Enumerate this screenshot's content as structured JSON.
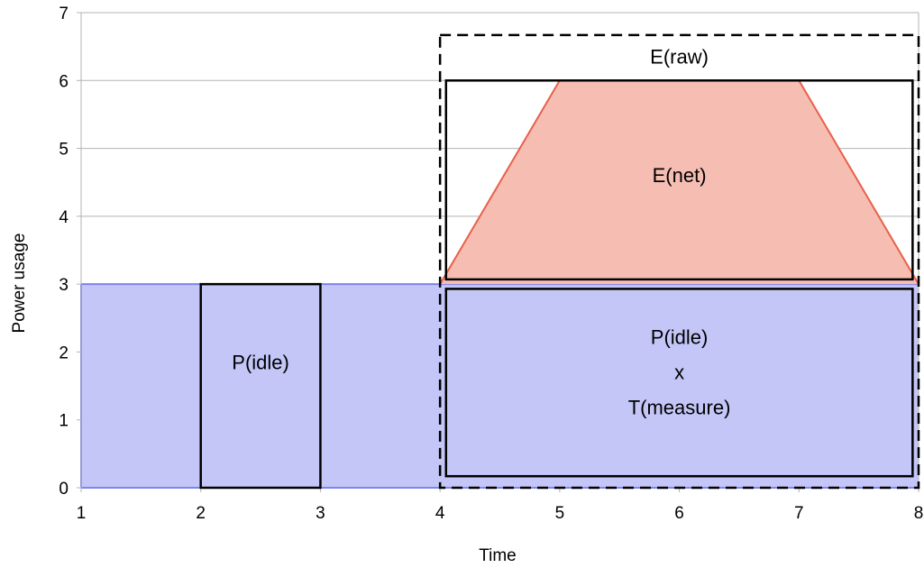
{
  "chart_data": {
    "type": "area",
    "xlabel": "Time",
    "ylabel": "Power usage",
    "xlim": [
      1,
      8
    ],
    "ylim": [
      0,
      7
    ],
    "x_ticks": [
      1,
      2,
      3,
      4,
      5,
      6,
      7,
      8
    ],
    "y_ticks": [
      0,
      1,
      2,
      3,
      4,
      5,
      6,
      7
    ],
    "grid": "horizontal",
    "series": [
      {
        "color": "#c3c6f7",
        "stroke": "#7b84f0",
        "points": [
          [
            1,
            0
          ],
          [
            1,
            3
          ],
          [
            8,
            3
          ],
          [
            8,
            0
          ]
        ]
      },
      {
        "color": "#f6bdb3",
        "stroke": "#e8604a",
        "points": [
          [
            4,
            3
          ],
          [
            5,
            6
          ],
          [
            7,
            6
          ],
          [
            8,
            3
          ]
        ]
      }
    ],
    "boxes": [
      {
        "label": "P(idle)",
        "x0": 2,
        "x1": 3,
        "y0": 0,
        "y1": 3,
        "style": "solid"
      },
      {
        "label": "E(net)",
        "x0": 4.05,
        "x1": 7.95,
        "y0": 3.07,
        "y1": 6,
        "style": "solid"
      },
      {
        "label_lines": [
          "P(idle)",
          "x",
          "T(measure)"
        ],
        "x0": 4.05,
        "x1": 7.95,
        "y0": 0.17,
        "y1": 2.93,
        "style": "solid"
      },
      {
        "label": "E(raw)",
        "x0": 4,
        "x1": 8,
        "y0": 0,
        "y1": 6.67,
        "style": "dashed"
      }
    ],
    "annotations": {
      "p_idle_left": "P(idle)",
      "e_net": "E(net)",
      "e_raw": "E(raw)",
      "p_idle_right": [
        "P(idle)",
        "x",
        "T(measure)"
      ]
    }
  }
}
